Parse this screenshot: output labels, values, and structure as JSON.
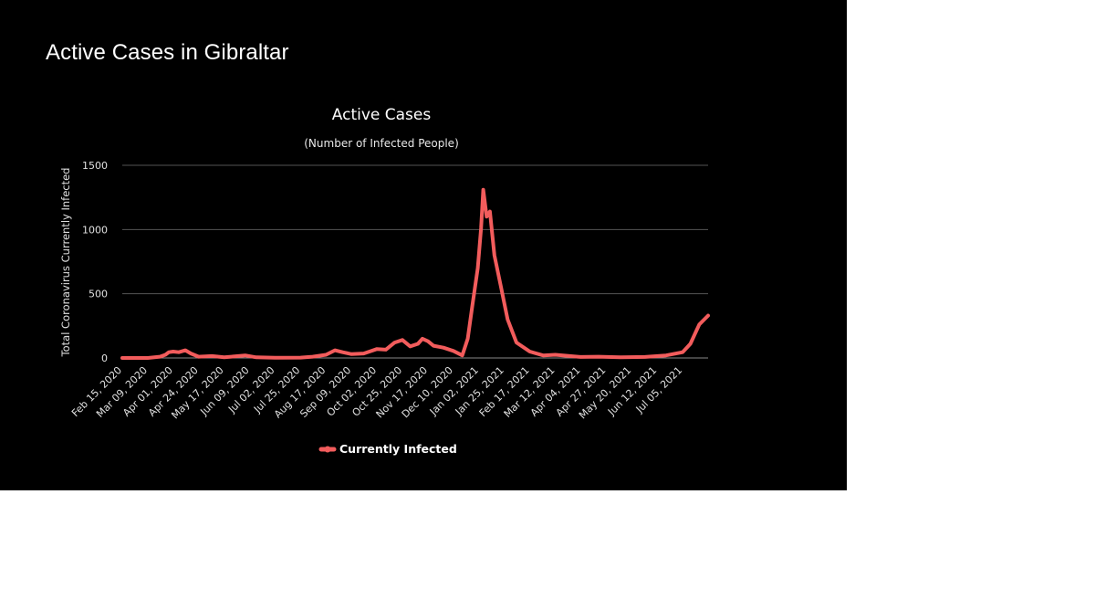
{
  "page": {
    "title": "Active Cases in Gibraltar"
  },
  "chart_data": {
    "type": "line",
    "title": "Active Cases",
    "subtitle": "(Number of Infected People)",
    "xlabel": "",
    "ylabel": "Total Coronavirus Currently Infected",
    "ylim": [
      0,
      1500
    ],
    "yticks": [
      0,
      500,
      1000,
      1500
    ],
    "grid": true,
    "legend_position": "bottom-center",
    "x_tick_labels": [
      "Feb 15, 2020",
      "Mar 09, 2020",
      "Apr 01, 2020",
      "Apr 24, 2020",
      "May 17, 2020",
      "Jun 09, 2020",
      "Jul 02, 2020",
      "Jul 25, 2020",
      "Aug 17, 2020",
      "Sep 09, 2020",
      "Oct 02, 2020",
      "Oct 25, 2020",
      "Nov 17, 2020",
      "Dec 10, 2020",
      "Jan 02, 2021",
      "Jan 25, 2021",
      "Feb 17, 2021",
      "Mar 12, 2021",
      "Apr 04, 2021",
      "Apr 27, 2021",
      "May 20, 2021",
      "Jun 12, 2021",
      "Jul 05, 2021"
    ],
    "x_range": [
      "Feb 15, 2020",
      "Jul 28, 2021"
    ],
    "colors": {
      "series": "#f25c5c",
      "background": "#000000"
    },
    "series": [
      {
        "name": "Currently Infected",
        "points": [
          [
            "Feb 15, 2020",
            0
          ],
          [
            "Mar 09, 2020",
            0
          ],
          [
            "Mar 20, 2020",
            10
          ],
          [
            "Mar 25, 2020",
            25
          ],
          [
            "Mar 28, 2020",
            45
          ],
          [
            "Apr 01, 2020",
            50
          ],
          [
            "Apr 06, 2020",
            45
          ],
          [
            "Apr 12, 2020",
            60
          ],
          [
            "Apr 17, 2020",
            35
          ],
          [
            "Apr 24, 2020",
            10
          ],
          [
            "May 06, 2020",
            15
          ],
          [
            "May 17, 2020",
            5
          ],
          [
            "Jun 05, 2020",
            20
          ],
          [
            "Jun 15, 2020",
            5
          ],
          [
            "Jul 02, 2020",
            2
          ],
          [
            "Jul 25, 2020",
            3
          ],
          [
            "Aug 05, 2020",
            10
          ],
          [
            "Aug 17, 2020",
            25
          ],
          [
            "Aug 25, 2020",
            60
          ],
          [
            "Sep 01, 2020",
            45
          ],
          [
            "Sep 09, 2020",
            30
          ],
          [
            "Sep 20, 2020",
            35
          ],
          [
            "Oct 02, 2020",
            70
          ],
          [
            "Oct 10, 2020",
            65
          ],
          [
            "Oct 18, 2020",
            120
          ],
          [
            "Oct 25, 2020",
            140
          ],
          [
            "Nov 01, 2020",
            90
          ],
          [
            "Nov 08, 2020",
            110
          ],
          [
            "Nov 12, 2020",
            150
          ],
          [
            "Nov 17, 2020",
            130
          ],
          [
            "Nov 22, 2020",
            95
          ],
          [
            "Dec 01, 2020",
            80
          ],
          [
            "Dec 10, 2020",
            55
          ],
          [
            "Dec 18, 2020",
            20
          ],
          [
            "Dec 23, 2020",
            150
          ],
          [
            "Dec 27, 2020",
            400
          ],
          [
            "Jan 01, 2021",
            700
          ],
          [
            "Jan 04, 2021",
            1010
          ],
          [
            "Jan 06, 2021",
            1310
          ],
          [
            "Jan 09, 2021",
            1100
          ],
          [
            "Jan 12, 2021",
            1140
          ],
          [
            "Jan 16, 2021",
            800
          ],
          [
            "Jan 22, 2021",
            550
          ],
          [
            "Jan 28, 2021",
            300
          ],
          [
            "Feb 05, 2021",
            120
          ],
          [
            "Feb 17, 2021",
            50
          ],
          [
            "Mar 01, 2021",
            20
          ],
          [
            "Mar 12, 2021",
            25
          ],
          [
            "Mar 25, 2021",
            15
          ],
          [
            "Apr 04, 2021",
            8
          ],
          [
            "Apr 20, 2021",
            10
          ],
          [
            "May 10, 2021",
            5
          ],
          [
            "Jun 01, 2021",
            8
          ],
          [
            "Jun 20, 2021",
            20
          ],
          [
            "Jul 05, 2021",
            45
          ],
          [
            "Jul 12, 2021",
            110
          ],
          [
            "Jul 20, 2021",
            260
          ],
          [
            "Jul 28, 2021",
            330
          ]
        ]
      }
    ]
  }
}
